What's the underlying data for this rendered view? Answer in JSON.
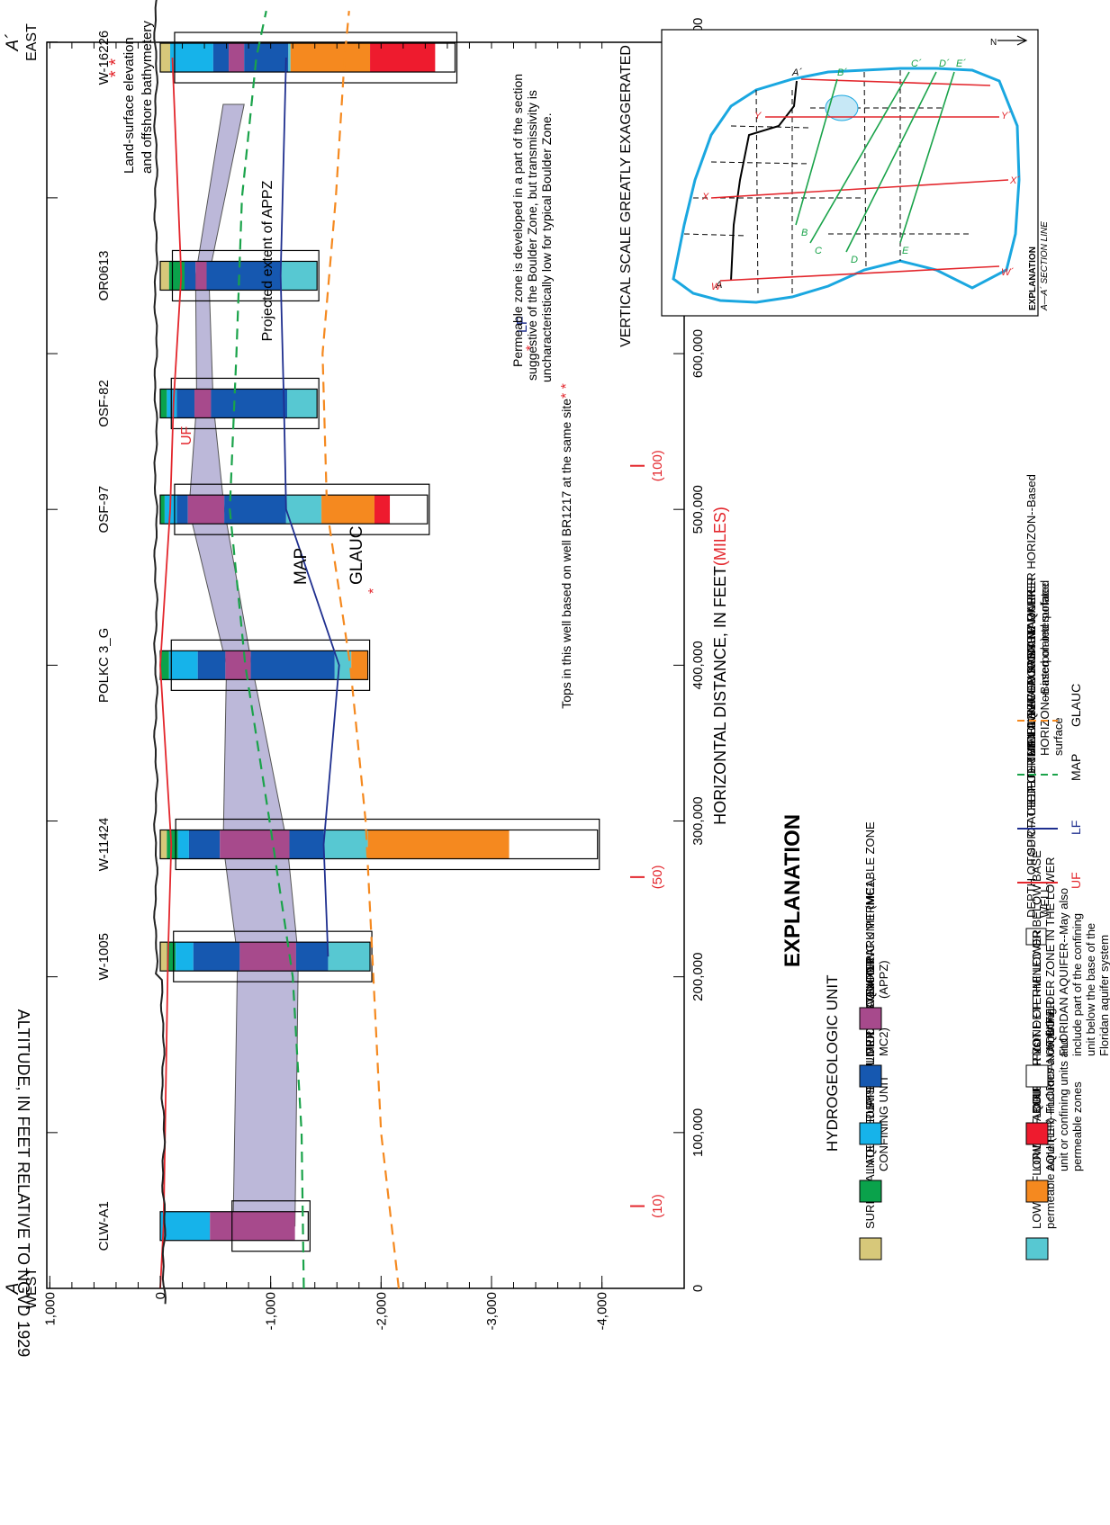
{
  "section": {
    "label_start": "A",
    "direction_start": "WEST",
    "label_end": "A´",
    "direction_end": "EAST",
    "y_axis_title": "ALTITUDE, IN FEET RELATIVE TO NGVD 1929",
    "x_axis_title_main": "HORIZONTAL DISTANCE, IN FEET",
    "x_axis_title_miles": "(MILES)",
    "vertical_scale_note": "VERTICAL SCALE GREATLY EXAGGERATED",
    "y_ticks": [
      "1,000",
      "0",
      "-1,000",
      "-2,000",
      "-3,000",
      "-4,000"
    ],
    "x_ticks": [
      "0",
      "100,000",
      "200,000",
      "300,000",
      "400,000",
      "500,000",
      "600,000",
      "700,000",
      "800,000"
    ],
    "mile_labels": [
      "(10)",
      "(50)",
      "(100)"
    ],
    "mile_extra": "500,000",
    "ground_label_1": "Land-surface elevation",
    "ground_label_2": "and offshore bathymetery",
    "appz_label": "Projected extent of APPZ",
    "map_label": "MAP",
    "glauc_label": "GLAUC",
    "uf_label": "UF",
    "lf_label": "LF",
    "note1_line1": "Permeable zone is developed in a part of the section",
    "note1_line2": "suggestive of the Boulder Zone, but transmissivity is",
    "note1_line3": "uncharacteristically low for typical Boulder Zone.",
    "note2": "Tops in this well based on well BR1217 at the same site",
    "star": "*",
    "double_star": "* *"
  },
  "wells": [
    {
      "name": "CLW-A1",
      "x": 40000,
      "segments": [
        {
          "unit": "upper",
          "top": 0,
          "bottom": -450
        },
        {
          "unit": "appz",
          "top": -450,
          "bottom": -1220
        }
      ],
      "depth_line": -650,
      "td": -1340
    },
    {
      "name": "W-1005",
      "x": 213000,
      "segments": [
        {
          "unit": "surficial",
          "top": 0,
          "bottom": -60
        },
        {
          "unit": "intermediate",
          "top": -60,
          "bottom": -140
        },
        {
          "unit": "upper",
          "top": -140,
          "bottom": -300
        },
        {
          "unit": "middle",
          "top": -300,
          "bottom": -720
        },
        {
          "unit": "appz",
          "top": -720,
          "bottom": -1230
        },
        {
          "unit": "middle",
          "top": -1230,
          "bottom": -1520
        },
        {
          "unit": "lfl",
          "top": -1520,
          "bottom": -1900
        }
      ],
      "depth_line": -120,
      "td": -1900
    },
    {
      "name": "W-11424",
      "x": 285000,
      "segments": [
        {
          "unit": "surficial",
          "top": 0,
          "bottom": -60
        },
        {
          "unit": "intermediate",
          "top": -60,
          "bottom": -160
        },
        {
          "unit": "upper",
          "top": -160,
          "bottom": -260
        },
        {
          "unit": "middle",
          "top": -260,
          "bottom": -540
        },
        {
          "unit": "appz",
          "top": -540,
          "bottom": -1170
        },
        {
          "unit": "middle",
          "top": -1170,
          "bottom": -1480
        },
        {
          "unit": "lfl",
          "top": -1480,
          "bottom": -1880
        },
        {
          "unit": "lfa",
          "top": -1880,
          "bottom": -3160
        },
        {
          "unit": "nd",
          "top": -3160,
          "bottom": -3960
        }
      ],
      "depth_line": -140,
      "td": -3960
    },
    {
      "name": "POLKC 3_G",
      "x": 400000,
      "segments": [
        {
          "unit": "intermediate",
          "top": 0,
          "bottom": -80
        },
        {
          "unit": "upper",
          "top": -80,
          "bottom": -340
        },
        {
          "unit": "middle",
          "top": -340,
          "bottom": -590
        },
        {
          "unit": "appz",
          "top": -590,
          "bottom": -820
        },
        {
          "unit": "middle",
          "top": -820,
          "bottom": -1580
        },
        {
          "unit": "lfl",
          "top": -1580,
          "bottom": -1730
        },
        {
          "unit": "lfa",
          "top": -1730,
          "bottom": -1880
        }
      ],
      "depth_line": -100,
      "td": -1880
    },
    {
      "name": "OSF-97",
      "x": 500000,
      "segments": [
        {
          "unit": "intermediate",
          "top": 0,
          "bottom": -40
        },
        {
          "unit": "upper",
          "top": -40,
          "bottom": -150
        },
        {
          "unit": "middle",
          "top": -150,
          "bottom": -250
        },
        {
          "unit": "appz",
          "top": -250,
          "bottom": -580
        },
        {
          "unit": "middle",
          "top": -580,
          "bottom": -1140
        },
        {
          "unit": "lfl",
          "top": -1140,
          "bottom": -1460
        },
        {
          "unit": "lfa",
          "top": -1460,
          "bottom": -1940
        },
        {
          "unit": "bz",
          "top": -1940,
          "bottom": -2080
        },
        {
          "unit": "nd",
          "top": -2080,
          "bottom": -2420
        }
      ],
      "depth_line": -130,
      "td": -2420
    },
    {
      "name": "OSF-82",
      "x": 568000,
      "segments": [
        {
          "unit": "intermediate",
          "top": 0,
          "bottom": -60
        },
        {
          "unit": "upper",
          "top": -60,
          "bottom": -150
        },
        {
          "unit": "middle",
          "top": -150,
          "bottom": -310
        },
        {
          "unit": "appz",
          "top": -310,
          "bottom": -460
        },
        {
          "unit": "middle",
          "top": -460,
          "bottom": -1150
        },
        {
          "unit": "lfl",
          "top": -1150,
          "bottom": -1420
        }
      ],
      "depth_line": -100,
      "td": -1420
    },
    {
      "name": "OR0613",
      "x": 650000,
      "segments": [
        {
          "unit": "surficial",
          "top": 0,
          "bottom": -80
        },
        {
          "unit": "intermediate",
          "top": -80,
          "bottom": -220
        },
        {
          "unit": "middle",
          "top": -220,
          "bottom": -320
        },
        {
          "unit": "appz",
          "top": -320,
          "bottom": -420
        },
        {
          "unit": "middle",
          "top": -420,
          "bottom": -1090
        },
        {
          "unit": "lfl",
          "top": -1090,
          "bottom": -1420
        }
      ],
      "depth_line": -110,
      "td": -1420
    },
    {
      "name": "W-16226",
      "x": 790000,
      "segments": [
        {
          "unit": "surficial",
          "top": 0,
          "bottom": -90
        },
        {
          "unit": "upper",
          "top": -90,
          "bottom": -480
        },
        {
          "unit": "middle",
          "top": -480,
          "bottom": -620
        },
        {
          "unit": "appz",
          "top": -620,
          "bottom": -760
        },
        {
          "unit": "middle",
          "top": -760,
          "bottom": -1160
        },
        {
          "unit": "lfl",
          "top": -1160,
          "bottom": -1180
        },
        {
          "unit": "lfa",
          "top": -1180,
          "bottom": -1900
        },
        {
          "unit": "bz",
          "top": -1900,
          "bottom": -2490
        },
        {
          "unit": "nd",
          "top": -2490,
          "bottom": -2670
        }
      ],
      "depth_line": -130,
      "td": -2670
    }
  ],
  "surfaces": {
    "uf": [
      [
        0,
        0
      ],
      [
        40000,
        -30
      ],
      [
        213000,
        -70
      ],
      [
        285000,
        -100
      ],
      [
        400000,
        0
      ],
      [
        500000,
        -90
      ],
      [
        568000,
        -120
      ],
      [
        650000,
        -190
      ],
      [
        790000,
        -110
      ]
    ],
    "lf": [
      [
        213000,
        -1520
      ],
      [
        285000,
        -1480
      ],
      [
        400000,
        -1620
      ],
      [
        500000,
        -1140
      ],
      [
        568000,
        -1120
      ],
      [
        650000,
        -1090
      ],
      [
        790000,
        -1140
      ]
    ],
    "map": [
      [
        0,
        -1300
      ],
      [
        100000,
        -1280
      ],
      [
        200000,
        -1200
      ],
      [
        300000,
        -990
      ],
      [
        400000,
        -770
      ],
      [
        500000,
        -630
      ],
      [
        600000,
        -690
      ],
      [
        700000,
        -740
      ],
      [
        790000,
        -870
      ],
      [
        820000,
        -960
      ]
    ],
    "glauc": [
      [
        0,
        -2160
      ],
      [
        100000,
        -2000
      ],
      [
        200000,
        -1930
      ],
      [
        300000,
        -1860
      ],
      [
        400000,
        -1720
      ],
      [
        500000,
        -1510
      ],
      [
        600000,
        -1470
      ],
      [
        700000,
        -1590
      ],
      [
        790000,
        -1670
      ],
      [
        820000,
        -1710
      ]
    ],
    "appz_band": [
      [
        40000,
        -660,
        -1220
      ],
      [
        213000,
        -700,
        -1250
      ],
      [
        285000,
        -570,
        -1150
      ],
      [
        400000,
        -600,
        -830
      ],
      [
        500000,
        -260,
        -580
      ],
      [
        568000,
        -330,
        -480
      ],
      [
        650000,
        -320,
        -440
      ],
      [
        760000,
        -570,
        -760
      ]
    ]
  },
  "legend": {
    "title": "EXPLANATION",
    "subtitle": "HYDROGEOLOGIC UNIT",
    "units": [
      {
        "key": "surficial",
        "color": "#d7c87a",
        "label": "SURFICIAL AQUIFER SYSTEM"
      },
      {
        "key": "intermediate",
        "color": "#0aa24b",
        "label": "INTERMEDIATE AQUIFER SYSTEM OR CONFINING UNIT"
      },
      {
        "key": "upper",
        "color": "#16b3ea",
        "label": "UPPER FLORIDAN AQUIFER"
      },
      {
        "key": "middle",
        "color": "#1658b0",
        "label": "MIDDLE CONFINING UNIT (MC1, MC2)"
      },
      {
        "key": "appz",
        "color": "#a74a8c",
        "label": "AVON PARK PERMEABLE ZONE (APPZ)"
      },
      {
        "key": "lfl",
        "color": "#57c8d2",
        "label": "LOWER FLORIDAN AQUIFER--First permeable zone (LFl)"
      },
      {
        "key": "lfa",
        "color": "#f5891f",
        "label": "LOWER FLORIDAN AQUIFER--Includes a confining unit or confining units and permeable zones"
      },
      {
        "key": "bz",
        "color": "#ee1b2e",
        "label": "BOULDER ZONE OF THE LOWER FLORIDAN AQUIFER"
      },
      {
        "key": "nd",
        "color": "#ffffff",
        "label": "NOT DETERMINED OR BELOW BASE OF BOULDER ZONE IN THE LOWER FLORIDAN AQUIFER--May also include part of the confining unit below the base of the Floridan aquifer system"
      }
    ],
    "lines": [
      {
        "sym": "",
        "label": "DEPTH OF SURFACE DETERMINED IN WELL"
      },
      {
        "sym": "UF",
        "label": "TOP OF THE FLORIDAN AQUIFER SYSTEM"
      },
      {
        "sym": "LF",
        "label": "TOP OF THE LOWER FLORIDAN AQUIFER"
      },
      {
        "sym": "MAP",
        "label": "MIDDLE AVON PARK MARKER HORIZON--Based on interpolated surface"
      },
      {
        "sym": "GLAUC",
        "label": "GLAUCONITE MARKER HORIZON--Based on interpolated surface"
      }
    ]
  },
  "inset": {
    "title": "EXPLANATION",
    "caption": "A—A´ SECTION LINE",
    "north": "N",
    "labels": [
      "A",
      "A´",
      "B",
      "B´",
      "C",
      "C´",
      "D",
      "D´",
      "E",
      "E´",
      "W",
      "W´",
      "X",
      "X´",
      "Y",
      "Y´"
    ]
  },
  "colors": {
    "uf_line": "#e3262c",
    "lf_line": "#1f2f8f",
    "map_line": "#1aa34a",
    "glauc_line": "#f5891f",
    "appz_band": "#bcb8d9",
    "water": "#1aa7e0",
    "miles_red": "#e3262c"
  }
}
